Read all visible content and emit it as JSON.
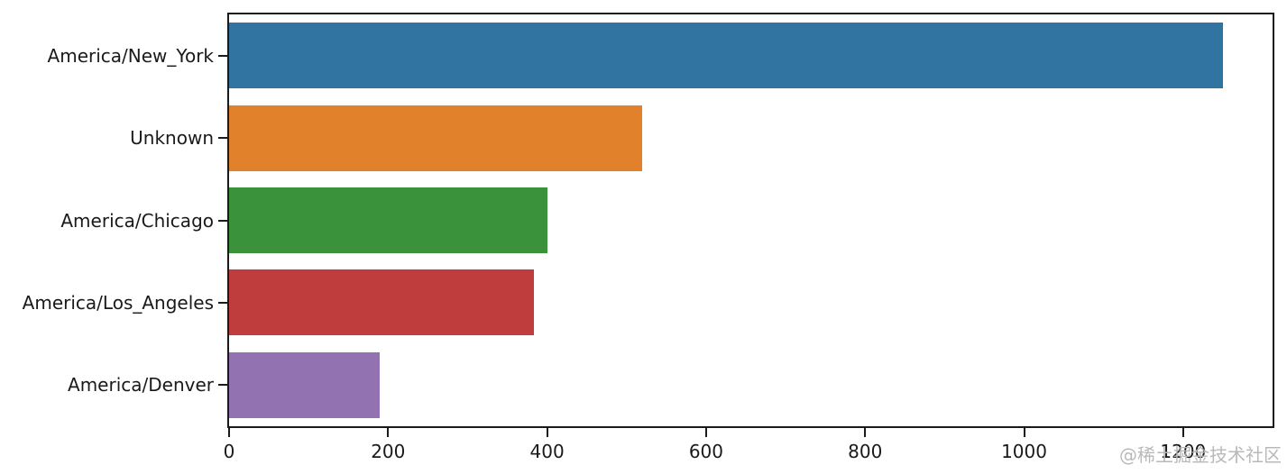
{
  "chart_data": {
    "type": "bar",
    "orientation": "horizontal",
    "title": "",
    "xlabel": "",
    "ylabel": "",
    "categories": [
      "America/New_York",
      "Unknown",
      "America/Chicago",
      "America/Los_Angeles",
      "America/Denver"
    ],
    "values": [
      1250,
      520,
      400,
      383,
      190
    ],
    "bar_colors": [
      "#3274a1",
      "#e1812c",
      "#3a923a",
      "#c03d3e",
      "#9372b2"
    ],
    "x_ticks": [
      0,
      200,
      400,
      600,
      800,
      1000,
      1200
    ],
    "xlim": [
      0,
      1312.5
    ],
    "bar_width_fraction": 0.8,
    "grid": false,
    "legend_position": "none"
  },
  "watermark": {
    "text": "@稀土掘金技术社区",
    "color": "#b9b9b9"
  },
  "colors": {
    "spine": "#1a1a1a",
    "tick_label": "#1a1a1a",
    "background": "#ffffff"
  }
}
